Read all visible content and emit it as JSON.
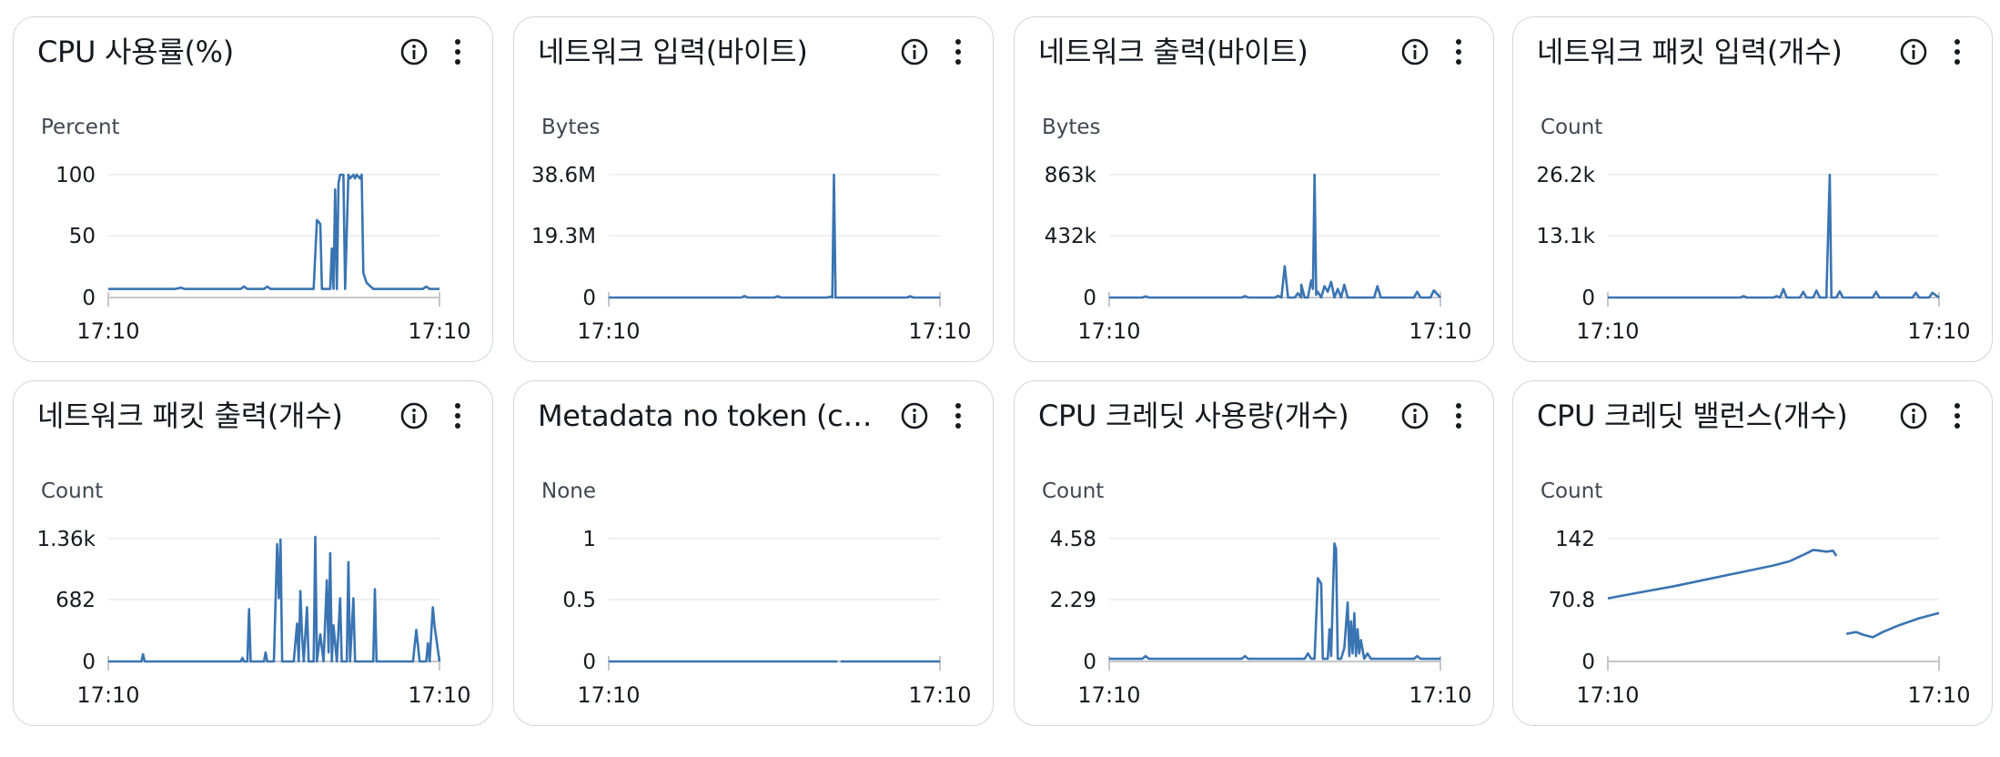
{
  "widgets": [
    {
      "title": "CPU 사용률(%)",
      "unit": "Percent",
      "y_ticks": [
        "100",
        "50",
        "0"
      ],
      "x_ticks": [
        "17:10",
        "17:10"
      ]
    },
    {
      "title": "네트워크 입력(바이트)",
      "unit": "Bytes",
      "y_ticks": [
        "38.6M",
        "19.3M",
        "0"
      ],
      "x_ticks": [
        "17:10",
        "17:10"
      ]
    },
    {
      "title": "네트워크 출력(바이트)",
      "unit": "Bytes",
      "y_ticks": [
        "863k",
        "432k",
        "0"
      ],
      "x_ticks": [
        "17:10",
        "17:10"
      ]
    },
    {
      "title": "네트워크 패킷 입력(개수)",
      "unit": "Count",
      "y_ticks": [
        "26.2k",
        "13.1k",
        "0"
      ],
      "x_ticks": [
        "17:10",
        "17:10"
      ]
    },
    {
      "title": "네트워크 패킷 출력(개수)",
      "unit": "Count",
      "y_ticks": [
        "1.36k",
        "682",
        "0"
      ],
      "x_ticks": [
        "17:10",
        "17:10"
      ]
    },
    {
      "title": "Metadata no token (c…",
      "unit": "None",
      "y_ticks": [
        "1",
        "0.5",
        "0"
      ],
      "x_ticks": [
        "17:10",
        "17:10"
      ]
    },
    {
      "title": "CPU 크레딧 사용량(개수)",
      "unit": "Count",
      "y_ticks": [
        "4.58",
        "2.29",
        "0"
      ],
      "x_ticks": [
        "17:10",
        "17:10"
      ]
    },
    {
      "title": "CPU 크레딧 밸런스(개수)",
      "unit": "Count",
      "y_ticks": [
        "142",
        "70.8",
        "0"
      ],
      "x_ticks": [
        "17:10",
        "17:10"
      ]
    }
  ],
  "icons": {
    "info": "info-circle-icon",
    "menu": "vertical-ellipsis-icon"
  },
  "colors": {
    "series": "#3a74b2",
    "grid": "#e9ebed",
    "baseline": "#c6c6cd",
    "border": "#d1d5db"
  },
  "chart_data": [
    {
      "type": "line",
      "ylim": [
        0,
        100
      ],
      "points": [
        [
          0,
          7
        ],
        [
          0.2,
          7
        ],
        [
          0.22,
          8
        ],
        [
          0.23,
          7
        ],
        [
          0.4,
          7
        ],
        [
          0.41,
          9
        ],
        [
          0.42,
          7
        ],
        [
          0.47,
          7
        ],
        [
          0.48,
          9
        ],
        [
          0.49,
          7
        ],
        [
          0.62,
          7
        ],
        [
          0.63,
          63
        ],
        [
          0.64,
          60
        ],
        [
          0.645,
          7
        ],
        [
          0.67,
          7
        ],
        [
          0.675,
          40
        ],
        [
          0.68,
          7
        ],
        [
          0.685,
          88
        ],
        [
          0.69,
          7
        ],
        [
          0.695,
          93
        ],
        [
          0.7,
          100
        ],
        [
          0.71,
          100
        ],
        [
          0.715,
          7
        ],
        [
          0.725,
          100
        ],
        [
          0.73,
          97
        ],
        [
          0.74,
          100
        ],
        [
          0.745,
          97
        ],
        [
          0.75,
          100
        ],
        [
          0.76,
          97
        ],
        [
          0.765,
          100
        ],
        [
          0.77,
          20
        ],
        [
          0.78,
          12
        ],
        [
          0.8,
          7
        ],
        [
          0.95,
          7
        ],
        [
          0.96,
          9
        ],
        [
          0.97,
          7
        ],
        [
          1,
          7
        ]
      ]
    },
    {
      "type": "line",
      "ylim": [
        0,
        38.6
      ],
      "points": [
        [
          0,
          0
        ],
        [
          0.4,
          0
        ],
        [
          0.41,
          0.5
        ],
        [
          0.42,
          0
        ],
        [
          0.5,
          0
        ],
        [
          0.51,
          0.4
        ],
        [
          0.52,
          0
        ],
        [
          0.66,
          0
        ],
        [
          0.67,
          0.3
        ],
        [
          0.675,
          0
        ],
        [
          0.68,
          38.6
        ],
        [
          0.685,
          0
        ],
        [
          0.9,
          0
        ],
        [
          0.91,
          0.4
        ],
        [
          0.92,
          0
        ],
        [
          1,
          0
        ]
      ]
    },
    {
      "type": "line",
      "ylim": [
        0,
        863
      ],
      "points": [
        [
          0,
          0
        ],
        [
          0.1,
          0
        ],
        [
          0.11,
          8
        ],
        [
          0.12,
          0
        ],
        [
          0.4,
          0
        ],
        [
          0.41,
          10
        ],
        [
          0.42,
          0
        ],
        [
          0.5,
          0
        ],
        [
          0.51,
          12
        ],
        [
          0.52,
          0
        ],
        [
          0.52,
          0
        ],
        [
          0.53,
          220
        ],
        [
          0.54,
          0
        ],
        [
          0.56,
          0
        ],
        [
          0.57,
          30
        ],
        [
          0.58,
          0
        ],
        [
          0.58,
          90
        ],
        [
          0.59,
          0
        ],
        [
          0.6,
          0
        ],
        [
          0.61,
          120
        ],
        [
          0.615,
          60
        ],
        [
          0.62,
          863
        ],
        [
          0.625,
          20
        ],
        [
          0.63,
          40
        ],
        [
          0.64,
          0
        ],
        [
          0.65,
          80
        ],
        [
          0.66,
          40
        ],
        [
          0.67,
          110
        ],
        [
          0.68,
          0
        ],
        [
          0.69,
          60
        ],
        [
          0.7,
          0
        ],
        [
          0.71,
          90
        ],
        [
          0.72,
          0
        ],
        [
          0.8,
          0
        ],
        [
          0.81,
          80
        ],
        [
          0.82,
          0
        ],
        [
          0.92,
          0
        ],
        [
          0.93,
          40
        ],
        [
          0.94,
          0
        ],
        [
          0.97,
          0
        ],
        [
          0.98,
          50
        ],
        [
          1,
          0
        ]
      ]
    },
    {
      "type": "line",
      "ylim": [
        0,
        26.2
      ],
      "points": [
        [
          0,
          0
        ],
        [
          0.4,
          0
        ],
        [
          0.41,
          0.3
        ],
        [
          0.42,
          0
        ],
        [
          0.5,
          0
        ],
        [
          0.51,
          0.3
        ],
        [
          0.52,
          0
        ],
        [
          0.53,
          1.8
        ],
        [
          0.54,
          0
        ],
        [
          0.58,
          0
        ],
        [
          0.59,
          1.2
        ],
        [
          0.6,
          0
        ],
        [
          0.62,
          0
        ],
        [
          0.63,
          1.5
        ],
        [
          0.64,
          0
        ],
        [
          0.66,
          0
        ],
        [
          0.67,
          26.2
        ],
        [
          0.675,
          0
        ],
        [
          0.69,
          0
        ],
        [
          0.7,
          1.3
        ],
        [
          0.71,
          0
        ],
        [
          0.8,
          0
        ],
        [
          0.81,
          1.2
        ],
        [
          0.82,
          0
        ],
        [
          0.92,
          0
        ],
        [
          0.93,
          1.0
        ],
        [
          0.94,
          0
        ],
        [
          0.97,
          0
        ],
        [
          0.98,
          1.0
        ],
        [
          1,
          0
        ]
      ]
    },
    {
      "type": "line",
      "ylim": [
        0,
        1360
      ],
      "points": [
        [
          0,
          0
        ],
        [
          0.1,
          0
        ],
        [
          0.105,
          80
        ],
        [
          0.11,
          0
        ],
        [
          0.4,
          0
        ],
        [
          0.405,
          40
        ],
        [
          0.41,
          0
        ],
        [
          0.42,
          0
        ],
        [
          0.425,
          580
        ],
        [
          0.43,
          0
        ],
        [
          0.47,
          0
        ],
        [
          0.475,
          100
        ],
        [
          0.48,
          0
        ],
        [
          0.5,
          0
        ],
        [
          0.51,
          1300
        ],
        [
          0.515,
          700
        ],
        [
          0.52,
          1350
        ],
        [
          0.525,
          0
        ],
        [
          0.56,
          0
        ],
        [
          0.57,
          420
        ],
        [
          0.575,
          0
        ],
        [
          0.58,
          780
        ],
        [
          0.585,
          300
        ],
        [
          0.59,
          0
        ],
        [
          0.6,
          600
        ],
        [
          0.605,
          0
        ],
        [
          0.62,
          0
        ],
        [
          0.625,
          1380
        ],
        [
          0.63,
          0
        ],
        [
          0.64,
          300
        ],
        [
          0.65,
          0
        ],
        [
          0.66,
          900
        ],
        [
          0.665,
          100
        ],
        [
          0.67,
          1200
        ],
        [
          0.675,
          0
        ],
        [
          0.68,
          400
        ],
        [
          0.69,
          0
        ],
        [
          0.7,
          700
        ],
        [
          0.705,
          0
        ],
        [
          0.72,
          0
        ],
        [
          0.725,
          1100
        ],
        [
          0.73,
          0
        ],
        [
          0.74,
          700
        ],
        [
          0.745,
          0
        ],
        [
          0.76,
          0
        ],
        [
          0.8,
          0
        ],
        [
          0.805,
          800
        ],
        [
          0.81,
          0
        ],
        [
          0.92,
          0
        ],
        [
          0.93,
          350
        ],
        [
          0.94,
          0
        ],
        [
          0.96,
          0
        ],
        [
          0.965,
          200
        ],
        [
          0.97,
          0
        ],
        [
          0.98,
          600
        ],
        [
          0.985,
          400
        ],
        [
          1,
          0
        ]
      ]
    },
    {
      "type": "line",
      "ylim": [
        0,
        1
      ],
      "segments": [
        [
          [
            0,
            0
          ],
          [
            0.69,
            0
          ]
        ],
        [
          [
            0.7,
            0
          ],
          [
            1,
            0
          ]
        ]
      ]
    },
    {
      "type": "line",
      "ylim": [
        0,
        4.58
      ],
      "points": [
        [
          0,
          0.1
        ],
        [
          0.1,
          0.1
        ],
        [
          0.11,
          0.2
        ],
        [
          0.12,
          0.1
        ],
        [
          0.4,
          0.1
        ],
        [
          0.41,
          0.2
        ],
        [
          0.42,
          0.1
        ],
        [
          0.59,
          0.1
        ],
        [
          0.6,
          0.3
        ],
        [
          0.61,
          0.1
        ],
        [
          0.62,
          0.1
        ],
        [
          0.63,
          3.1
        ],
        [
          0.64,
          2.9
        ],
        [
          0.645,
          0.1
        ],
        [
          0.66,
          0.1
        ],
        [
          0.665,
          1.2
        ],
        [
          0.67,
          0.2
        ],
        [
          0.68,
          4.4
        ],
        [
          0.685,
          4.2
        ],
        [
          0.69,
          0.1
        ],
        [
          0.7,
          0.1
        ],
        [
          0.71,
          0.5
        ],
        [
          0.72,
          2.2
        ],
        [
          0.725,
          0.2
        ],
        [
          0.73,
          1.5
        ],
        [
          0.735,
          0.3
        ],
        [
          0.74,
          1.8
        ],
        [
          0.745,
          0.2
        ],
        [
          0.75,
          1.2
        ],
        [
          0.755,
          0.3
        ],
        [
          0.76,
          0.8
        ],
        [
          0.77,
          0.1
        ],
        [
          0.78,
          0.3
        ],
        [
          0.79,
          0.1
        ],
        [
          0.92,
          0.1
        ],
        [
          0.93,
          0.2
        ],
        [
          0.94,
          0.1
        ],
        [
          1,
          0.1
        ]
      ]
    },
    {
      "type": "line",
      "ylim": [
        0,
        142
      ],
      "segments": [
        [
          [
            0,
            73
          ],
          [
            0.1,
            80
          ],
          [
            0.2,
            87
          ],
          [
            0.3,
            95
          ],
          [
            0.4,
            103
          ],
          [
            0.5,
            111
          ],
          [
            0.55,
            116
          ],
          [
            0.6,
            125
          ],
          [
            0.61,
            127
          ],
          [
            0.62,
            129
          ],
          [
            0.64,
            128
          ],
          [
            0.66,
            127
          ],
          [
            0.68,
            128
          ],
          [
            0.69,
            122
          ]
        ],
        [
          [
            0.72,
            32
          ],
          [
            0.75,
            34
          ],
          [
            0.77,
            31
          ],
          [
            0.8,
            28
          ],
          [
            0.83,
            34
          ],
          [
            0.88,
            42
          ],
          [
            0.94,
            50
          ],
          [
            1,
            56
          ]
        ]
      ]
    }
  ]
}
